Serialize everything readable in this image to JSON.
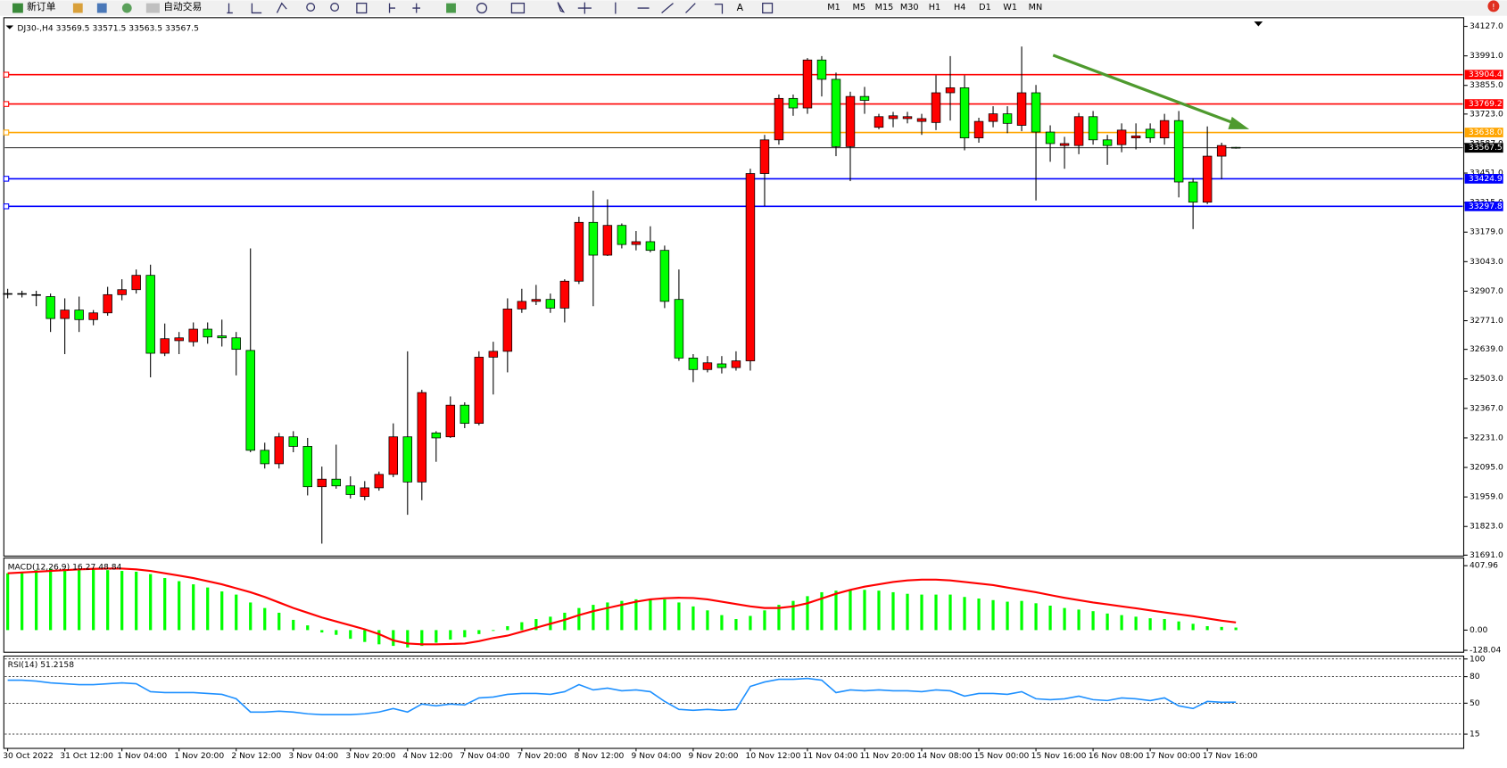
{
  "toolbar": {
    "buttons": [
      "新订单",
      "自动交易"
    ],
    "timeframes": [
      "M1",
      "M5",
      "M15",
      "M30",
      "H1",
      "H4",
      "D1",
      "W1",
      "MN"
    ]
  },
  "chart_data": [
    {
      "type": "candlestick",
      "title": "DJ30-,H4",
      "up_color": "#ff0000",
      "down_color": "#00ff00",
      "x": [
        "30 Oct 2022",
        null,
        null,
        null,
        "31 Oct 12:00",
        null,
        null,
        null,
        "1 Nov 04:00",
        null,
        null,
        null,
        "1 Nov 20:00",
        null,
        null,
        null,
        "2 Nov 12:00",
        null,
        null,
        null,
        "3 Nov 04:00",
        null,
        null,
        null,
        "3 Nov 20:00",
        null,
        null,
        null,
        "4 Nov 12:00",
        null,
        null,
        null,
        "7 Nov 04:00",
        null,
        null,
        null,
        "7 Nov 20:00",
        null,
        null,
        null,
        "8 Nov 12:00",
        null,
        null,
        null,
        "9 Nov 04:00",
        null,
        null,
        null,
        "9 Nov 20:00",
        null,
        null,
        null,
        "10 Nov 12:00",
        null,
        null,
        null,
        "11 Nov 04:00",
        null,
        null,
        null,
        "11 Nov 20:00",
        null,
        null,
        null,
        "14 Nov 08:00",
        null,
        null,
        null,
        "15 Nov 00:00",
        null,
        null,
        null,
        "15 Nov 16:00",
        null,
        null,
        null,
        "16 Nov 08:00",
        null,
        null,
        null,
        "17 Nov 00:00",
        null,
        null,
        null,
        "17 Nov 16:00",
        null,
        null
      ],
      "open": [
        32896,
        32896,
        32891,
        32882,
        32781,
        32820,
        32776,
        32807,
        32891,
        32914,
        32980,
        32621,
        32679,
        32674,
        32732,
        32701,
        32692,
        32634,
        32174,
        32112,
        32236,
        32192,
        32006,
        32041,
        32010,
        31961,
        32001,
        32063,
        32236,
        32028,
        32254,
        32236,
        32382,
        32298,
        32603,
        32630,
        32825,
        32860,
        32869,
        32829,
        32953,
        33224,
        33073,
        33210,
        33122,
        33135,
        33095,
        32869,
        32599,
        32546,
        32572,
        32555,
        32586,
        33449,
        33604,
        33795,
        33751,
        33972,
        33883,
        33573,
        33804,
        33662,
        33702,
        33702,
        33689,
        33684,
        33821,
        33844,
        33613,
        33689,
        33724,
        33671,
        33821,
        33640,
        33578,
        33578,
        33711,
        33604,
        33582,
        33613,
        33653,
        33613,
        33693,
        33410,
        33317,
        33529,
        33569.5
      ],
      "high": [
        32918,
        32909,
        32909,
        32896,
        32874,
        32882,
        32820,
        32927,
        32962,
        33007,
        33029,
        32758,
        32719,
        32763,
        32763,
        32776,
        32719,
        33104,
        32209,
        32254,
        32262,
        32231,
        32099,
        32200,
        32054,
        32032,
        32076,
        32298,
        32630,
        32453,
        32262,
        32422,
        32395,
        32630,
        32674,
        32874,
        32918,
        32936,
        32896,
        32962,
        33250,
        33370,
        33330,
        33219,
        33184,
        33206,
        33117,
        33007,
        32617,
        32608,
        32608,
        32630,
        33471,
        33627,
        33813,
        33813,
        33981,
        33990,
        33914,
        33826,
        33848,
        33724,
        33733,
        33733,
        33724,
        33901,
        33990,
        33901,
        33706,
        33759,
        33759,
        34034,
        33857,
        33671,
        33618,
        33728,
        33737,
        33627,
        33680,
        33680,
        33680,
        33724,
        33737,
        33427,
        33666,
        33591,
        33571.5
      ],
      "low": [
        32874,
        32878,
        32838,
        32719,
        32617,
        32719,
        32750,
        32794,
        32865,
        32896,
        32510,
        32608,
        32617,
        32652,
        32665,
        32652,
        32519,
        32165,
        32090,
        32090,
        32165,
        31966,
        31744,
        31997,
        31952,
        31944,
        31988,
        32050,
        31877,
        31944,
        32121,
        32231,
        32276,
        32289,
        32431,
        32533,
        32807,
        32843,
        32807,
        32763,
        32940,
        32838,
        33069,
        33104,
        33095,
        33086,
        32829,
        32586,
        32488,
        32533,
        32528,
        32541,
        32541,
        33299,
        33582,
        33715,
        33724,
        33804,
        33529,
        33414,
        33724,
        33653,
        33662,
        33680,
        33627,
        33649,
        33693,
        33556,
        33591,
        33662,
        33635,
        33644,
        33325,
        33503,
        33471,
        33538,
        33582,
        33489,
        33547,
        33560,
        33591,
        33582,
        33339,
        33193,
        33308,
        33423,
        33563.5
      ],
      "close": [
        32896,
        32896,
        32891,
        32781,
        32820,
        32776,
        32807,
        32891,
        32914,
        32980,
        32621,
        32688,
        32692,
        32732,
        32696,
        32692,
        32639,
        32174,
        32112,
        32236,
        32192,
        32006,
        32041,
        32010,
        31970,
        32001,
        32063,
        32236,
        32028,
        32440,
        32231,
        32382,
        32298,
        32603,
        32630,
        32825,
        32860,
        32869,
        32829,
        32953,
        33224,
        33073,
        33210,
        33122,
        33135,
        33095,
        32860,
        32599,
        32546,
        32577,
        32555,
        32586,
        33449,
        33604,
        33795,
        33751,
        33972,
        33883,
        33573,
        33804,
        33786,
        33711,
        33715,
        33711,
        33702,
        33821,
        33844,
        33613,
        33689,
        33724,
        33680,
        33821,
        33640,
        33587,
        33587,
        33711,
        33604,
        33578,
        33649,
        33622,
        33613,
        33693,
        33410,
        33317,
        33529,
        33578,
        33567.5
      ],
      "ylim": [
        31691,
        34127
      ],
      "yticks": [
        {
          "value": 34127,
          "label": "34127.0"
        },
        {
          "value": 33991,
          "label": "33991.0"
        },
        {
          "value": 33855,
          "label": "33855.0"
        },
        {
          "value": 33723,
          "label": "33723.0"
        },
        {
          "value": 33587,
          "label": "33587.0"
        },
        {
          "value": 33451,
          "label": "33451.0"
        },
        {
          "value": 33315,
          "label": "33315.0"
        },
        {
          "value": 33179,
          "label": "33179.0"
        },
        {
          "value": 33043,
          "label": "33043.0"
        },
        {
          "value": 32907,
          "label": "32907.0"
        },
        {
          "value": 32771,
          "label": "32771.0"
        },
        {
          "value": 32639,
          "label": "32639.0"
        },
        {
          "value": 32503,
          "label": "32503.0"
        },
        {
          "value": 32367,
          "label": "32367.0"
        },
        {
          "value": 32231,
          "label": "32231.0"
        },
        {
          "value": 32095,
          "label": "32095.0"
        },
        {
          "value": 31959,
          "label": "31959.0"
        },
        {
          "value": 31823,
          "label": "31823.0"
        },
        {
          "value": 31691,
          "label": "31691.0"
        }
      ],
      "hlines": [
        {
          "value": 33904.4,
          "color": "#ff0000"
        },
        {
          "value": 33769.2,
          "color": "#ff0000"
        },
        {
          "value": 33638,
          "label": "33638.0",
          "color": "#ffa500"
        },
        {
          "value": 33424.9,
          "color": "#0000ff"
        },
        {
          "value": 33297.8,
          "color": "#0000ff"
        }
      ]
    },
    {
      "type": "macd",
      "title": "MACD(12,26,9)",
      "series": [
        {
          "color": "#00ff00",
          "values": [
            360,
            370,
            380,
            385,
            385,
            390,
            390,
            380,
            375,
            370,
            355,
            330,
            310,
            290,
            270,
            245,
            225,
            175,
            140,
            110,
            65,
            30,
            -15,
            -30,
            -55,
            -75,
            -90,
            -100,
            -110,
            -100,
            -80,
            -60,
            -45,
            -25,
            -5,
            25,
            50,
            70,
            85,
            110,
            140,
            160,
            175,
            185,
            195,
            200,
            195,
            175,
            150,
            125,
            95,
            70,
            90,
            125,
            160,
            185,
            215,
            240,
            250,
            255,
            255,
            250,
            240,
            230,
            225,
            225,
            225,
            210,
            200,
            190,
            180,
            185,
            170,
            155,
            140,
            130,
            120,
            105,
            95,
            85,
            75,
            70,
            55,
            40,
            25,
            20,
            16.27
          ]
        },
        {
          "color": "#ff0000",
          "values": [
            360,
            365,
            370,
            375,
            380,
            385,
            388,
            390,
            390,
            385,
            375,
            360,
            345,
            330,
            310,
            290,
            265,
            240,
            210,
            175,
            140,
            110,
            80,
            55,
            30,
            5,
            -25,
            -65,
            -85,
            -90,
            -90,
            -88,
            -85,
            -70,
            -50,
            -35,
            -10,
            15,
            40,
            65,
            95,
            120,
            140,
            160,
            180,
            195,
            202,
            205,
            203,
            195,
            180,
            165,
            150,
            140,
            140,
            150,
            170,
            200,
            230,
            255,
            275,
            290,
            305,
            315,
            320,
            320,
            315,
            305,
            295,
            285,
            270,
            255,
            240,
            222,
            205,
            190,
            175,
            163,
            150,
            138,
            125,
            112,
            100,
            88,
            74,
            60,
            48.84
          ]
        }
      ],
      "ylim": [
        -128.04,
        407.96
      ],
      "yticks": [
        407.96,
        {
          "value": 0,
          "label": "0.00"
        },
        -128.04
      ]
    },
    {
      "type": "rsi",
      "title": "RSI(14)",
      "series": [
        {
          "color": "#1e90ff",
          "values": [
            76,
            76,
            75,
            73,
            72,
            71,
            71,
            72,
            73,
            72,
            63,
            62,
            62,
            62,
            61,
            60,
            55,
            40,
            40,
            41,
            40,
            38,
            37,
            37,
            37,
            38,
            40,
            44,
            40,
            49,
            47,
            49,
            48,
            56,
            57,
            60,
            61,
            61,
            60,
            63,
            71,
            65,
            67,
            64,
            65,
            63,
            52,
            43,
            42,
            43,
            42,
            43,
            69,
            74,
            77,
            77,
            78,
            76,
            62,
            65,
            64,
            65,
            64,
            64,
            63,
            65,
            64,
            58,
            61,
            61,
            60,
            63,
            55,
            54,
            55,
            58,
            54,
            53,
            56,
            55,
            53,
            56,
            47,
            44,
            52,
            51,
            51.2158
          ]
        }
      ],
      "ylim": [
        0,
        100
      ],
      "yticks": [
        100,
        80,
        50,
        15
      ]
    }
  ]
}
